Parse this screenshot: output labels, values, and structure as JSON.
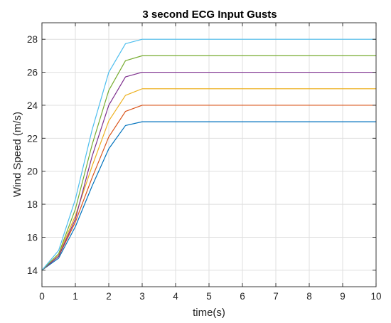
{
  "chart_data": {
    "type": "line",
    "title": "3 second ECG Input Gusts",
    "xlabel": "time(s)",
    "ylabel": "Wind Speed (m/s)",
    "xlim": [
      0,
      10
    ],
    "ylim": [
      13,
      29
    ],
    "x_ticks": [
      0,
      1,
      2,
      3,
      4,
      5,
      6,
      7,
      8,
      9,
      10
    ],
    "y_ticks": [
      14,
      16,
      18,
      20,
      22,
      24,
      26,
      28
    ],
    "grid": true,
    "legend": "none",
    "x": [
      0,
      0.5,
      1,
      1.5,
      2,
      2.5,
      3,
      4,
      5,
      6,
      7,
      8,
      9,
      10
    ],
    "series": [
      {
        "color": "#0072BD",
        "values": [
          14,
          14.73,
          16.64,
          19.1,
          21.36,
          22.77,
          23,
          23,
          23,
          23,
          23,
          23,
          23,
          23
        ]
      },
      {
        "color": "#D95319",
        "values": [
          14,
          14.84,
          16.92,
          19.6,
          22.08,
          23.63,
          24,
          24,
          24,
          24,
          24,
          24,
          24,
          24
        ]
      },
      {
        "color": "#EDB120",
        "values": [
          14,
          14.97,
          17.3,
          20.3,
          23.05,
          24.6,
          25,
          25,
          25,
          25,
          25,
          25,
          25,
          25
        ]
      },
      {
        "color": "#7E2F8E",
        "values": [
          14,
          14.86,
          17.1,
          20.9,
          24.0,
          25.72,
          26,
          26,
          26,
          26,
          26,
          26,
          26,
          26
        ]
      },
      {
        "color": "#77AC30",
        "values": [
          14,
          15.0,
          17.7,
          21.6,
          24.9,
          26.7,
          27,
          27,
          27,
          27,
          27,
          27,
          27,
          27
        ]
      },
      {
        "color": "#4DBEEE",
        "values": [
          14,
          15.2,
          18.3,
          22.5,
          26.0,
          27.73,
          28,
          28,
          28,
          28,
          28,
          28,
          28,
          28
        ]
      }
    ]
  }
}
